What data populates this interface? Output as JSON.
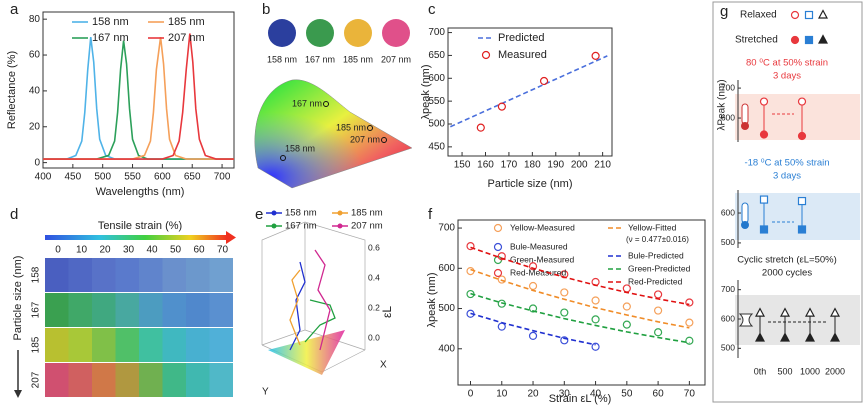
{
  "panel_labels": [
    "a",
    "b",
    "c",
    "d",
    "e",
    "f",
    "g"
  ],
  "chart_data": [
    {
      "type": "line",
      "xlabel": "Wavelengths (nm)",
      "ylabel": "Reflectance (%)",
      "xlim": [
        400,
        720
      ],
      "xticks": [
        400,
        450,
        500,
        550,
        600,
        650,
        700
      ],
      "ylim": [
        -3,
        84
      ],
      "yticks": [
        0,
        20,
        40,
        60,
        80
      ],
      "series": [
        {
          "name": "158 nm",
          "color": "#4fb3e8",
          "mark": "line",
          "x": [
            400,
            440,
            455,
            465,
            470,
            475,
            480,
            485,
            490,
            495,
            505,
            520,
            560,
            720
          ],
          "values": [
            2,
            2,
            4,
            12,
            28,
            52,
            70,
            56,
            30,
            13,
            4,
            2,
            2,
            2
          ]
        },
        {
          "name": "167 nm",
          "color": "#2ca05a",
          "mark": "line",
          "x": [
            400,
            490,
            510,
            520,
            525,
            530,
            535,
            540,
            545,
            550,
            560,
            575,
            620,
            720
          ],
          "values": [
            2,
            2,
            4,
            12,
            28,
            52,
            68,
            55,
            30,
            13,
            4,
            2,
            2,
            2
          ]
        },
        {
          "name": "185 nm",
          "color": "#f5a05a",
          "mark": "line",
          "x": [
            400,
            550,
            570,
            580,
            585,
            590,
            597,
            602,
            607,
            612,
            622,
            640,
            680,
            720
          ],
          "values": [
            2,
            2,
            4,
            12,
            28,
            52,
            70,
            55,
            30,
            13,
            4,
            2,
            2,
            2
          ]
        },
        {
          "name": "207 nm",
          "color": "#e8383d",
          "mark": "line",
          "x": [
            400,
            600,
            618,
            628,
            634,
            640,
            646,
            651,
            656,
            662,
            672,
            690,
            720
          ],
          "values": [
            2,
            2,
            4,
            12,
            28,
            52,
            72,
            56,
            30,
            13,
            4,
            2,
            2
          ]
        }
      ]
    },
    {
      "type": "scatter",
      "xlabel": "Particle size  (nm)",
      "ylabel": "λpeak (nm)",
      "xlim": [
        144,
        214
      ],
      "xticks": [
        150,
        160,
        170,
        180,
        190,
        200,
        210
      ],
      "ylim": [
        430,
        710
      ],
      "yticks": [
        450,
        500,
        550,
        600,
        650,
        700
      ],
      "series": [
        {
          "name": "Predicted",
          "color": "#4a6fdc",
          "mark": "dashed-line",
          "x": [
            145,
            212
          ],
          "values": [
            494,
            649
          ]
        },
        {
          "name": "Measured",
          "color": "#e02020",
          "mark": "open-circle",
          "x": [
            158,
            167,
            185,
            207
          ],
          "values": [
            492,
            538,
            594,
            649
          ]
        }
      ]
    },
    {
      "type": "scatter",
      "xlabel": "Strain εL (%)",
      "ylabel": "λpeak (nm)",
      "annotation": "(ν = 0.477±0.016)",
      "xlim": [
        -4,
        75
      ],
      "xticks": [
        0,
        10,
        20,
        30,
        40,
        50,
        60,
        70
      ],
      "ylim": [
        310,
        720
      ],
      "yticks": [
        400,
        500,
        600,
        700
      ],
      "series": [
        {
          "name": "Yellow-Measured",
          "color": "#f5a05a",
          "mark": "open-circle",
          "x": [
            0,
            10,
            20,
            30,
            40,
            50,
            60,
            70
          ],
          "values": [
            593,
            572,
            556,
            540,
            520,
            505,
            495,
            465
          ]
        },
        {
          "name": "Bule-Measured",
          "color": "#3b4fd8",
          "mark": "open-circle",
          "x": [
            0,
            10,
            20,
            30,
            40
          ],
          "values": [
            487,
            455,
            432,
            421,
            405
          ]
        },
        {
          "name": "Green-Measured",
          "color": "#34a853",
          "mark": "open-circle",
          "x": [
            0,
            10,
            20,
            30,
            40,
            50,
            60,
            70
          ],
          "values": [
            536,
            512,
            500,
            490,
            473,
            460,
            441,
            420
          ]
        },
        {
          "name": "Red-Measured",
          "color": "#e8383d",
          "mark": "open-circle",
          "x": [
            0,
            10,
            20,
            30,
            40,
            50,
            60,
            70
          ],
          "values": [
            655,
            630,
            605,
            585,
            566,
            550,
            535,
            515
          ]
        },
        {
          "name": "Yellow-Fitted",
          "color": "#f08c28",
          "mark": "dashed-line",
          "x": [
            0,
            10,
            20,
            30,
            40,
            50,
            60,
            70
          ],
          "values": [
            597,
            570,
            545,
            523,
            502,
            484,
            467,
            452
          ]
        },
        {
          "name": "Bule-Predicted",
          "color": "#2030d0",
          "mark": "dashed-line",
          "x": [
            0,
            10,
            20,
            30,
            40
          ],
          "values": [
            488,
            465,
            445,
            426,
            410
          ]
        },
        {
          "name": "Green-Predicted",
          "color": "#20a040",
          "mark": "dashed-line",
          "x": [
            0,
            10,
            20,
            30,
            40,
            50,
            60,
            70
          ],
          "values": [
            537,
            514,
            494,
            475,
            458,
            442,
            428,
            415
          ]
        },
        {
          "name": "Red-Predicted",
          "color": "#e01010",
          "mark": "dashed-line",
          "x": [
            0,
            10,
            20,
            30,
            40,
            50,
            60,
            70
          ],
          "values": [
            652,
            625,
            600,
            578,
            558,
            540,
            524,
            510
          ]
        }
      ]
    }
  ],
  "panel_b": {
    "swatches": [
      {
        "label": "158 nm",
        "color": "#2b3f9e"
      },
      {
        "label": "167 nm",
        "color": "#3a9a4e"
      },
      {
        "label": "185 nm",
        "color": "#eab43a"
      },
      {
        "label": "207 nm",
        "color": "#e0508a"
      }
    ],
    "points": [
      "167 nm",
      "185 nm",
      "207 nm",
      "158 nm"
    ]
  },
  "panel_d": {
    "title": "Tensile strain (%)",
    "ticks": [
      0,
      10,
      20,
      30,
      40,
      50,
      60,
      70
    ],
    "axis_label": "Particle size (nm)",
    "rows": [
      "158",
      "167",
      "185",
      "207"
    ]
  },
  "panel_e": {
    "legend": [
      {
        "name": "158 nm",
        "color": "#2030d0"
      },
      {
        "name": "185 nm",
        "color": "#f0a030"
      },
      {
        "name": "167 nm",
        "color": "#20a040"
      },
      {
        "name": "207 nm",
        "color": "#d02890"
      }
    ],
    "z_label": "εL",
    "z_ticks": [
      "0.6",
      "0.4",
      "0.2",
      "0.0"
    ],
    "x_label": "X",
    "y_label": "Y"
  },
  "panel_g": {
    "relaxed": "Relaxed",
    "stretched": "Stretched",
    "ylabel": "λPeak (nm)",
    "cycle_labels": [
      "0th",
      "500",
      "1000",
      "2000"
    ],
    "rows": [
      {
        "caption": [
          "80 ⁰C at 50% strain",
          "3 days"
        ],
        "color": "#e8383d",
        "marker": "circle",
        "ylim": [
          520,
          727
        ],
        "yticks": [
          600,
          700
        ],
        "relaxed": [
          655,
          655
        ],
        "stretched": [
          545,
          540
        ]
      },
      {
        "caption": [
          "-18 ⁰C at 50% strain",
          "3 days"
        ],
        "color": "#2a7fd4",
        "marker": "square",
        "ylim": [
          483,
          677
        ],
        "yticks": [
          500,
          600
        ],
        "relaxed": [
          645,
          640
        ],
        "stretched": [
          545,
          545
        ]
      },
      {
        "caption": [
          "Cyclic stretch (εL=50%)",
          "2000 cycles"
        ],
        "color": "#222222",
        "marker": "triangle",
        "ylim": [
          467,
          733
        ],
        "yticks": [
          500,
          600,
          700
        ],
        "relaxed": [
          620,
          620,
          620,
          620
        ],
        "stretched": [
          535,
          535,
          535,
          535
        ]
      }
    ]
  }
}
